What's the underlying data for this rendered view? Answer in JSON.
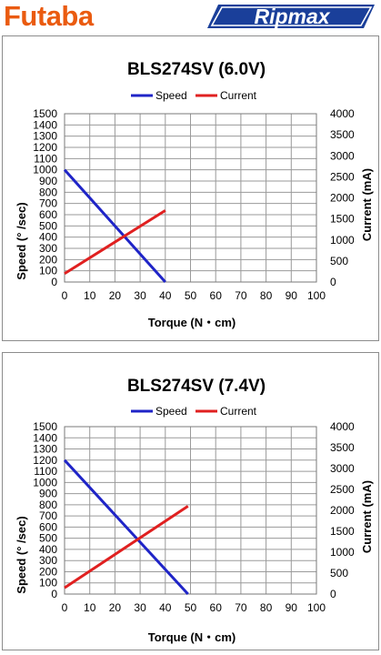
{
  "logos": {
    "left_brand": "Futaba",
    "right_brand": "Ripmax",
    "left_color": "#ea5b10",
    "right_color": "#1a3f9a"
  },
  "colors": {
    "speed": "#1f24c7",
    "current": "#e02020",
    "grid": "#9a9a9a"
  },
  "chart_data": [
    {
      "type": "line",
      "title": "BLS274SV (6.0V)",
      "xlabel": "Torque (N・cm)",
      "ylabel": "Speed (° /sec)",
      "y2label": "Current (mA)",
      "xlim": [
        0,
        100
      ],
      "ylim": [
        0,
        1500
      ],
      "y2lim": [
        0,
        4000
      ],
      "xticks": [
        "0",
        "10",
        "20",
        "30",
        "40",
        "50",
        "60",
        "70",
        "80",
        "90",
        "100"
      ],
      "yticks": [
        "0",
        "100",
        "200",
        "300",
        "400",
        "500",
        "600",
        "700",
        "800",
        "900",
        "1000",
        "1100",
        "1200",
        "1300",
        "1400",
        "1500"
      ],
      "y2ticks": [
        "0",
        "500",
        "1000",
        "1500",
        "2000",
        "2500",
        "3000",
        "3500",
        "4000"
      ],
      "grid": true,
      "legend_position": "top-center",
      "series": [
        {
          "name": "Speed",
          "axis": "left",
          "x": [
            0,
            40
          ],
          "y": [
            1000,
            0
          ]
        },
        {
          "name": "Current",
          "axis": "right",
          "x": [
            0,
            40
          ],
          "y": [
            200,
            1700
          ]
        }
      ]
    },
    {
      "type": "line",
      "title": "BLS274SV (7.4V)",
      "xlabel": "Torque (N・cm)",
      "ylabel": "Speed (° /sec)",
      "y2label": "Current (mA)",
      "xlim": [
        0,
        100
      ],
      "ylim": [
        0,
        1500
      ],
      "y2lim": [
        0,
        4000
      ],
      "xticks": [
        "0",
        "10",
        "20",
        "30",
        "40",
        "50",
        "60",
        "70",
        "80",
        "90",
        "100"
      ],
      "yticks": [
        "0",
        "100",
        "200",
        "300",
        "400",
        "500",
        "600",
        "700",
        "800",
        "900",
        "1000",
        "1100",
        "1200",
        "1300",
        "1400",
        "1500"
      ],
      "y2ticks": [
        "0",
        "500",
        "1000",
        "1500",
        "2000",
        "2500",
        "3000",
        "3500",
        "4000"
      ],
      "grid": true,
      "legend_position": "top-center",
      "series": [
        {
          "name": "Speed",
          "axis": "left",
          "x": [
            0,
            49
          ],
          "y": [
            1200,
            0
          ]
        },
        {
          "name": "Current",
          "axis": "right",
          "x": [
            0,
            49
          ],
          "y": [
            150,
            2100
          ]
        }
      ]
    }
  ]
}
